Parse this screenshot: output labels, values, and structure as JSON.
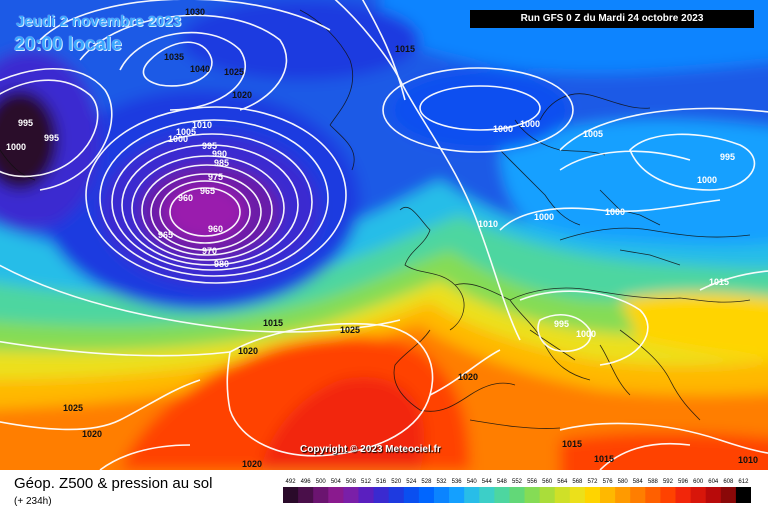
{
  "header": {
    "date": "Jeudi 2 novembre 2023",
    "time": "20:00 locale",
    "run": "Run GFS 0 Z du Mardi 24 octobre 2023"
  },
  "copyright": "Copyright © 2023 Meteociel.fr",
  "footer": {
    "title": "Géop. Z500 & pression au sol",
    "subtitle": "(+ 234h)"
  },
  "legend": {
    "values": [
      "492",
      "496",
      "500",
      "504",
      "508",
      "512",
      "516",
      "520",
      "524",
      "528",
      "532",
      "536",
      "540",
      "544",
      "548",
      "552",
      "556",
      "560",
      "564",
      "568",
      "572",
      "576",
      "580",
      "584",
      "588",
      "592",
      "596",
      "600",
      "604",
      "608",
      "612"
    ],
    "colors": [
      "#2a0a2a",
      "#4a0f4a",
      "#6b1470",
      "#8a1a8e",
      "#7a1fa8",
      "#5a1fbf",
      "#3a2ad0",
      "#1e3ae0",
      "#0a4ff0",
      "#0066ff",
      "#0b84ff",
      "#14a0ff",
      "#28bde8",
      "#3ccfc8",
      "#4dd6a0",
      "#62d878",
      "#85dc55",
      "#aadd3a",
      "#cfe028",
      "#ece01a",
      "#ffd400",
      "#ffb800",
      "#ff9a00",
      "#ff7e00",
      "#ff6000",
      "#ff4200",
      "#f2260a",
      "#d8160a",
      "#b80a0a",
      "#8a0808",
      "#000000"
    ]
  },
  "pressure_labels": [
    {
      "text": "1030",
      "tone": "dark"
    },
    {
      "text": "1035",
      "tone": "dark"
    },
    {
      "text": "1040",
      "tone": "dark"
    },
    {
      "text": "1025",
      "tone": "dark"
    },
    {
      "text": "1020",
      "tone": "dark"
    },
    {
      "text": "995",
      "tone": "light"
    },
    {
      "text": "995",
      "tone": "light"
    },
    {
      "text": "1000",
      "tone": "light"
    },
    {
      "text": "1015",
      "tone": "dark"
    },
    {
      "text": "1010",
      "tone": "light"
    },
    {
      "text": "1005",
      "tone": "light"
    },
    {
      "text": "1000",
      "tone": "light"
    },
    {
      "text": "995",
      "tone": "light"
    },
    {
      "text": "990",
      "tone": "light"
    },
    {
      "text": "985",
      "tone": "light"
    },
    {
      "text": "975",
      "tone": "light"
    },
    {
      "text": "965",
      "tone": "light"
    },
    {
      "text": "960",
      "tone": "light"
    },
    {
      "text": "960",
      "tone": "light"
    },
    {
      "text": "965",
      "tone": "light"
    },
    {
      "text": "970",
      "tone": "light"
    },
    {
      "text": "980",
      "tone": "light"
    },
    {
      "text": "1000",
      "tone": "light"
    },
    {
      "text": "1000",
      "tone": "light"
    },
    {
      "text": "1005",
      "tone": "light"
    },
    {
      "text": "995",
      "tone": "light"
    },
    {
      "text": "1000",
      "tone": "light"
    },
    {
      "text": "1010",
      "tone": "light"
    },
    {
      "text": "1000",
      "tone": "light"
    },
    {
      "text": "1000",
      "tone": "light"
    },
    {
      "text": "1015",
      "tone": "light"
    },
    {
      "text": "1025",
      "tone": "dark"
    },
    {
      "text": "1015",
      "tone": "dark"
    },
    {
      "text": "1020",
      "tone": "dark"
    },
    {
      "text": "995",
      "tone": "light"
    },
    {
      "text": "1000",
      "tone": "light"
    },
    {
      "text": "1020",
      "tone": "dark"
    },
    {
      "text": "1025",
      "tone": "dark"
    },
    {
      "text": "1020",
      "tone": "dark"
    },
    {
      "text": "1015",
      "tone": "dark"
    },
    {
      "text": "1015",
      "tone": "dark"
    },
    {
      "text": "1020",
      "tone": "dark"
    },
    {
      "text": "1010",
      "tone": "dark"
    }
  ]
}
